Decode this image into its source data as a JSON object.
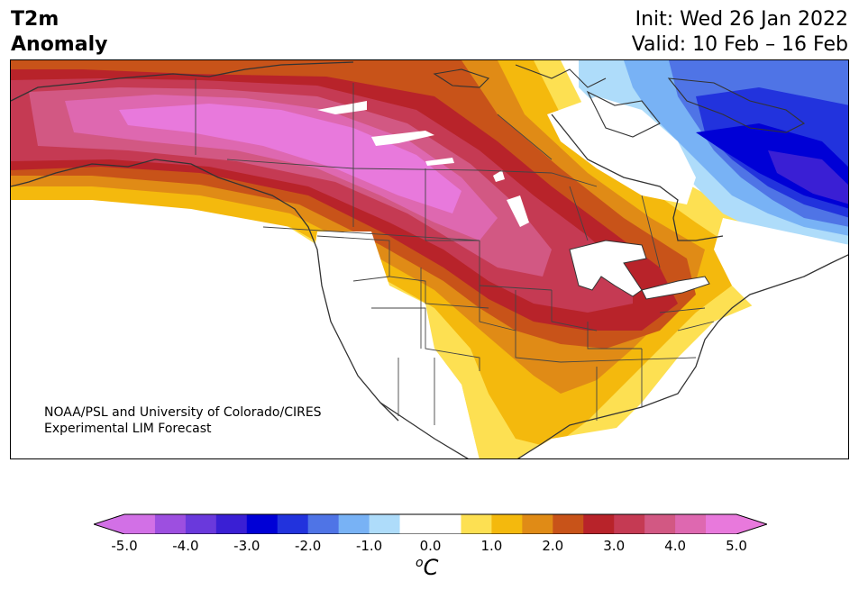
{
  "header": {
    "variable": "T2m",
    "type": "Anomaly",
    "init": "Init: Wed 26 Jan 2022",
    "valid": "Valid: 10 Feb – 16 Feb"
  },
  "credit": {
    "line1": "NOAA/PSL and University of Colorado/CIRES",
    "line2": "Experimental LIM Forecast"
  },
  "colorbar": {
    "unit_main": "C",
    "unit_sup": "o",
    "min": -5.0,
    "max": 5.0,
    "step": 0.5,
    "ticks": [
      "-5.0",
      "-4.0",
      "-3.0",
      "-2.0",
      "-1.0",
      "0.0",
      "1.0",
      "2.0",
      "3.0",
      "4.0",
      "5.0"
    ],
    "colors": [
      "#d270e6",
      "#9d4fe0",
      "#6a39dc",
      "#3a1fd4",
      "#0000d6",
      "#2233dd",
      "#4f74e6",
      "#78b2f5",
      "#aedcfa",
      "#ffffff",
      "#ffffff",
      "#fde052",
      "#f4b90d",
      "#e08b16",
      "#c85319",
      "#b8232a",
      "#c53a53",
      "#d25883",
      "#de68b0",
      "#e879dc"
    ]
  },
  "map": {
    "region": "North America",
    "projection": "conic",
    "features": [
      "coastlines",
      "state-borders",
      "province-borders",
      "great-lakes"
    ]
  }
}
